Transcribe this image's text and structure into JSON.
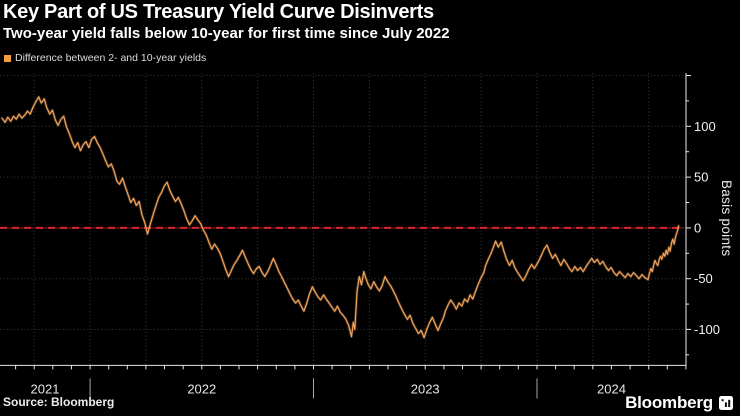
{
  "chart_data": {
    "type": "line",
    "title": "Key Part of US Treasury Yield Curve Disinverts",
    "subtitle": "Two-year yield falls below 10-year for first time since July 2022",
    "ylabel": "Basis points",
    "x_domain": [
      2021.597,
      2024.667
    ],
    "y_domain": [
      -135.4,
      152.5
    ],
    "x_year_boundaries": [
      2022,
      2023,
      2024
    ],
    "x_year_labels": [
      "2021",
      "2022",
      "2023",
      "2024"
    ],
    "x_quarter_gridline_start": 2021.75,
    "x_quarter_step": 0.25,
    "y_gridlines": [
      150,
      100,
      50,
      -50,
      -100
    ],
    "y_ticks_min": -125,
    "y_ticks_max": 150,
    "y_ticks_step": 25,
    "y_labeled_ticks": [
      100,
      50,
      0,
      -50,
      -100
    ],
    "grid_on": true,
    "legend_position": "top-left",
    "zero_line": {
      "value": 0,
      "color": "#d5252d",
      "under_color": "#4a1014"
    },
    "line_color": "#f5a55c",
    "series": [
      {
        "name": "Difference between 2- and 10-year yields",
        "points": [
          [
            2021.606,
            108
          ],
          [
            2021.62,
            104
          ],
          [
            2021.632,
            109
          ],
          [
            2021.645,
            105
          ],
          [
            2021.658,
            110
          ],
          [
            2021.67,
            107
          ],
          [
            2021.682,
            112
          ],
          [
            2021.695,
            108
          ],
          [
            2021.708,
            111
          ],
          [
            2021.72,
            115
          ],
          [
            2021.732,
            112
          ],
          [
            2021.745,
            119
          ],
          [
            2021.757,
            124
          ],
          [
            2021.77,
            129
          ],
          [
            2021.782,
            123
          ],
          [
            2021.795,
            127
          ],
          [
            2021.807,
            118
          ],
          [
            2021.82,
            112
          ],
          [
            2021.832,
            116
          ],
          [
            2021.845,
            106
          ],
          [
            2021.857,
            101
          ],
          [
            2021.87,
            107
          ],
          [
            2021.882,
            110
          ],
          [
            2021.895,
            99
          ],
          [
            2021.907,
            93
          ],
          [
            2021.92,
            85
          ],
          [
            2021.932,
            79
          ],
          [
            2021.945,
            84
          ],
          [
            2021.957,
            76
          ],
          [
            2021.97,
            82
          ],
          [
            2021.982,
            85
          ],
          [
            2021.995,
            79
          ],
          [
            2022.007,
            87
          ],
          [
            2022.02,
            90
          ],
          [
            2022.032,
            84
          ],
          [
            2022.045,
            79
          ],
          [
            2022.057,
            73
          ],
          [
            2022.07,
            66
          ],
          [
            2022.082,
            60
          ],
          [
            2022.095,
            63
          ],
          [
            2022.107,
            56
          ],
          [
            2022.12,
            46
          ],
          [
            2022.132,
            43
          ],
          [
            2022.145,
            49
          ],
          [
            2022.157,
            41
          ],
          [
            2022.17,
            33
          ],
          [
            2022.182,
            25
          ],
          [
            2022.195,
            29
          ],
          [
            2022.207,
            22
          ],
          [
            2022.22,
            26
          ],
          [
            2022.232,
            13
          ],
          [
            2022.245,
            5
          ],
          [
            2022.257,
            -6
          ],
          [
            2022.27,
            4
          ],
          [
            2022.282,
            13
          ],
          [
            2022.295,
            22
          ],
          [
            2022.307,
            30
          ],
          [
            2022.32,
            35
          ],
          [
            2022.332,
            41
          ],
          [
            2022.345,
            45
          ],
          [
            2022.357,
            37
          ],
          [
            2022.37,
            31
          ],
          [
            2022.382,
            26
          ],
          [
            2022.395,
            30
          ],
          [
            2022.407,
            24
          ],
          [
            2022.42,
            17
          ],
          [
            2022.432,
            9
          ],
          [
            2022.445,
            3
          ],
          [
            2022.457,
            7
          ],
          [
            2022.47,
            12
          ],
          [
            2022.482,
            8
          ],
          [
            2022.495,
            4
          ],
          [
            2022.507,
            -2
          ],
          [
            2022.52,
            -7
          ],
          [
            2022.532,
            -14
          ],
          [
            2022.545,
            -21
          ],
          [
            2022.557,
            -16
          ],
          [
            2022.57,
            -20
          ],
          [
            2022.582,
            -25
          ],
          [
            2022.595,
            -33
          ],
          [
            2022.607,
            -41
          ],
          [
            2022.62,
            -48
          ],
          [
            2022.632,
            -42
          ],
          [
            2022.645,
            -36
          ],
          [
            2022.657,
            -32
          ],
          [
            2022.67,
            -27
          ],
          [
            2022.682,
            -22
          ],
          [
            2022.695,
            -29
          ],
          [
            2022.707,
            -35
          ],
          [
            2022.72,
            -41
          ],
          [
            2022.732,
            -45
          ],
          [
            2022.745,
            -40
          ],
          [
            2022.757,
            -38
          ],
          [
            2022.77,
            -44
          ],
          [
            2022.782,
            -48
          ],
          [
            2022.795,
            -43
          ],
          [
            2022.807,
            -37
          ],
          [
            2022.82,
            -30
          ],
          [
            2022.832,
            -36
          ],
          [
            2022.845,
            -43
          ],
          [
            2022.857,
            -48
          ],
          [
            2022.87,
            -54
          ],
          [
            2022.882,
            -59
          ],
          [
            2022.895,
            -65
          ],
          [
            2022.907,
            -70
          ],
          [
            2022.92,
            -74
          ],
          [
            2022.932,
            -71
          ],
          [
            2022.945,
            -77
          ],
          [
            2022.957,
            -82
          ],
          [
            2022.97,
            -74
          ],
          [
            2022.982,
            -65
          ],
          [
            2022.995,
            -58
          ],
          [
            2023.007,
            -63
          ],
          [
            2023.02,
            -68
          ],
          [
            2023.032,
            -71
          ],
          [
            2023.045,
            -66
          ],
          [
            2023.057,
            -70
          ],
          [
            2023.07,
            -74
          ],
          [
            2023.082,
            -78
          ],
          [
            2023.095,
            -82
          ],
          [
            2023.107,
            -77
          ],
          [
            2023.12,
            -83
          ],
          [
            2023.132,
            -86
          ],
          [
            2023.145,
            -90
          ],
          [
            2023.157,
            -96
          ],
          [
            2023.17,
            -107
          ],
          [
            2023.178,
            -93
          ],
          [
            2023.185,
            -100
          ],
          [
            2023.195,
            -62
          ],
          [
            2023.205,
            -48
          ],
          [
            2023.215,
            -56
          ],
          [
            2023.225,
            -43
          ],
          [
            2023.235,
            -50
          ],
          [
            2023.245,
            -56
          ],
          [
            2023.257,
            -60
          ],
          [
            2023.27,
            -53
          ],
          [
            2023.282,
            -58
          ],
          [
            2023.295,
            -62
          ],
          [
            2023.307,
            -57
          ],
          [
            2023.32,
            -48
          ],
          [
            2023.332,
            -53
          ],
          [
            2023.345,
            -57
          ],
          [
            2023.357,
            -62
          ],
          [
            2023.37,
            -68
          ],
          [
            2023.382,
            -74
          ],
          [
            2023.395,
            -80
          ],
          [
            2023.407,
            -85
          ],
          [
            2023.42,
            -90
          ],
          [
            2023.432,
            -86
          ],
          [
            2023.445,
            -94
          ],
          [
            2023.457,
            -99
          ],
          [
            2023.47,
            -104
          ],
          [
            2023.482,
            -101
          ],
          [
            2023.495,
            -108
          ],
          [
            2023.507,
            -100
          ],
          [
            2023.52,
            -93
          ],
          [
            2023.532,
            -88
          ],
          [
            2023.545,
            -95
          ],
          [
            2023.557,
            -101
          ],
          [
            2023.57,
            -94
          ],
          [
            2023.582,
            -88
          ],
          [
            2023.59,
            -82
          ],
          [
            2023.602,
            -76
          ],
          [
            2023.614,
            -71
          ],
          [
            2023.627,
            -75
          ],
          [
            2023.639,
            -80
          ],
          [
            2023.651,
            -74
          ],
          [
            2023.664,
            -77
          ],
          [
            2023.676,
            -70
          ],
          [
            2023.689,
            -73
          ],
          [
            2023.701,
            -66
          ],
          [
            2023.713,
            -70
          ],
          [
            2023.726,
            -62
          ],
          [
            2023.738,
            -55
          ],
          [
            2023.75,
            -49
          ],
          [
            2023.762,
            -44
          ],
          [
            2023.77,
            -37
          ],
          [
            2023.782,
            -31
          ],
          [
            2023.795,
            -25
          ],
          [
            2023.807,
            -18
          ],
          [
            2023.815,
            -13
          ],
          [
            2023.827,
            -19
          ],
          [
            2023.84,
            -14
          ],
          [
            2023.852,
            -23
          ],
          [
            2023.864,
            -31
          ],
          [
            2023.877,
            -37
          ],
          [
            2023.889,
            -32
          ],
          [
            2023.901,
            -39
          ],
          [
            2023.914,
            -44
          ],
          [
            2023.926,
            -48
          ],
          [
            2023.938,
            -52
          ],
          [
            2023.951,
            -47
          ],
          [
            2023.963,
            -41
          ],
          [
            2023.976,
            -36
          ],
          [
            2023.988,
            -40
          ],
          [
            2024.007,
            -33
          ],
          [
            2024.02,
            -27
          ],
          [
            2024.032,
            -21
          ],
          [
            2024.045,
            -17
          ],
          [
            2024.057,
            -24
          ],
          [
            2024.07,
            -30
          ],
          [
            2024.082,
            -26
          ],
          [
            2024.095,
            -32
          ],
          [
            2024.107,
            -37
          ],
          [
            2024.12,
            -31
          ],
          [
            2024.132,
            -35
          ],
          [
            2024.145,
            -40
          ],
          [
            2024.157,
            -43
          ],
          [
            2024.17,
            -38
          ],
          [
            2024.182,
            -42
          ],
          [
            2024.195,
            -39
          ],
          [
            2024.207,
            -43
          ],
          [
            2024.22,
            -38
          ],
          [
            2024.232,
            -34
          ],
          [
            2024.245,
            -30
          ],
          [
            2024.257,
            -34
          ],
          [
            2024.27,
            -31
          ],
          [
            2024.282,
            -36
          ],
          [
            2024.295,
            -33
          ],
          [
            2024.307,
            -38
          ],
          [
            2024.32,
            -42
          ],
          [
            2024.332,
            -39
          ],
          [
            2024.345,
            -44
          ],
          [
            2024.357,
            -47
          ],
          [
            2024.37,
            -43
          ],
          [
            2024.382,
            -46
          ],
          [
            2024.395,
            -49
          ],
          [
            2024.407,
            -45
          ],
          [
            2024.42,
            -48
          ],
          [
            2024.432,
            -44
          ],
          [
            2024.445,
            -47
          ],
          [
            2024.457,
            -50
          ],
          [
            2024.47,
            -46
          ],
          [
            2024.483,
            -49
          ],
          [
            2024.497,
            -51
          ],
          [
            2024.503,
            -45
          ],
          [
            2024.51,
            -40
          ],
          [
            2024.516,
            -43
          ],
          [
            2024.522,
            -37
          ],
          [
            2024.528,
            -32
          ],
          [
            2024.534,
            -35
          ],
          [
            2024.541,
            -37
          ],
          [
            2024.547,
            -31
          ],
          [
            2024.553,
            -28
          ],
          [
            2024.559,
            -31
          ],
          [
            2024.566,
            -25
          ],
          [
            2024.572,
            -28
          ],
          [
            2024.578,
            -22
          ],
          [
            2024.584,
            -26
          ],
          [
            2024.59,
            -19
          ],
          [
            2024.596,
            -23
          ],
          [
            2024.602,
            -15
          ],
          [
            2024.608,
            -11
          ],
          [
            2024.614,
            -16
          ],
          [
            2024.62,
            -9
          ],
          [
            2024.626,
            -5
          ],
          [
            2024.63,
            -2
          ],
          [
            2024.634,
            2
          ]
        ]
      }
    ]
  },
  "legend": {
    "swatch_color": "#f49d3f"
  },
  "footer": {
    "source": "Source: Bloomberg",
    "brand": "Bloomberg",
    "brand_icon": "bloomberg-chart-logo"
  },
  "colors": {
    "background": "#000000",
    "title_text": "#ffffff",
    "line": "#f5a55c",
    "legend_swatch": "#f49d3f",
    "zero_line_red": "#d5252d",
    "gridline": "#3a3a3a",
    "axis": "#e8e8e6"
  }
}
